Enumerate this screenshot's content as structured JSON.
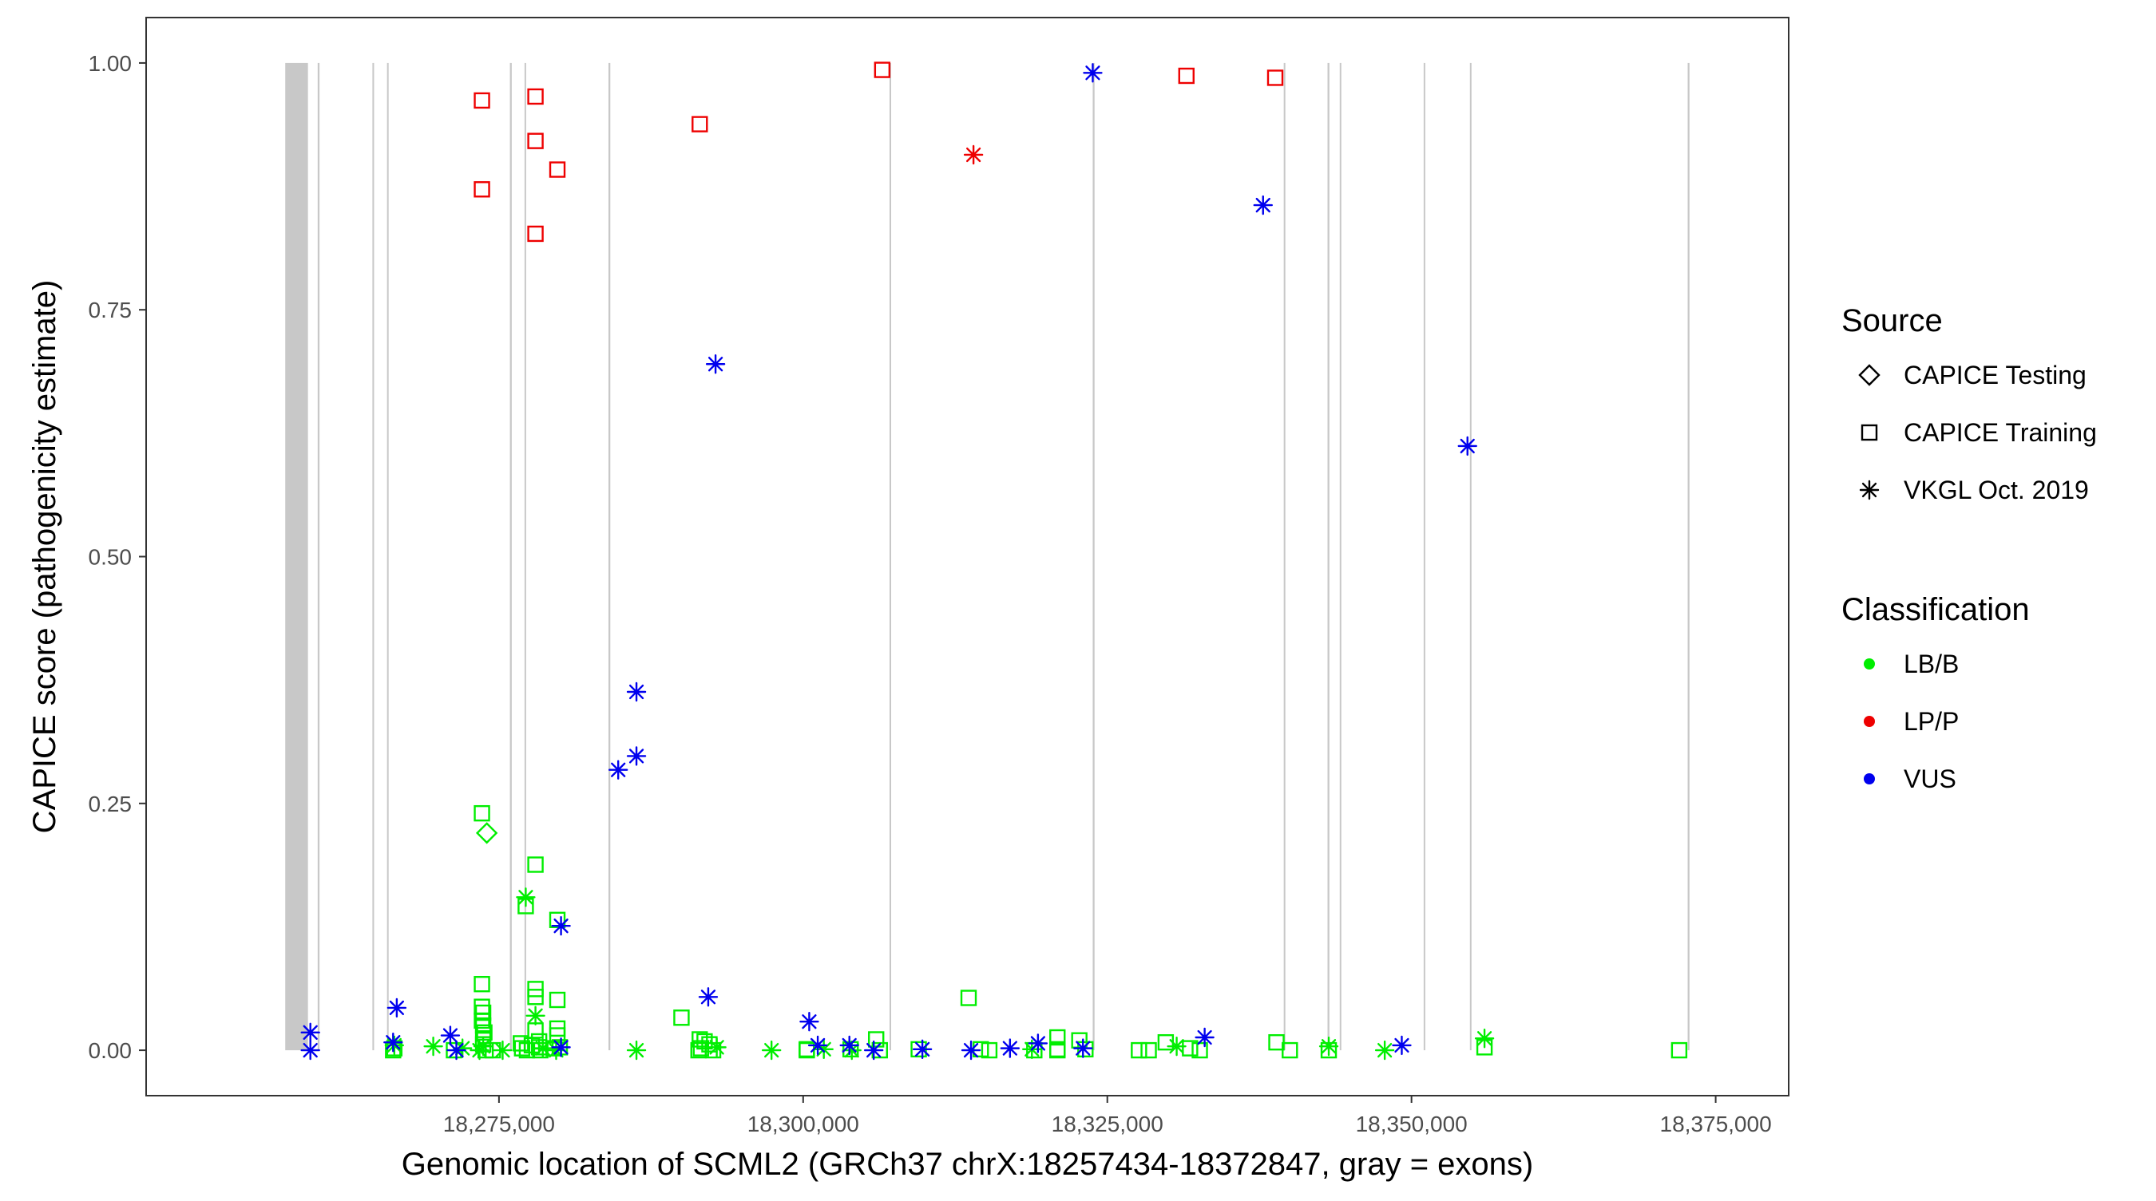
{
  "chart_data": {
    "type": "scatter",
    "xlabel": "Genomic location of SCML2 (GRCh37 chrX:18257434-18372847, gray = exons)",
    "ylabel": "CAPICE score (pathogenicity estimate)",
    "xlim": [
      18246000,
      18381000
    ],
    "ylim": [
      -0.046,
      1.046
    ],
    "x_ticks": [
      18275000,
      18300000,
      18325000,
      18350000,
      18375000
    ],
    "x_tick_labels": [
      "18,275,000",
      "18,300,000",
      "18,325,000",
      "18,350,000",
      "18,375,000"
    ],
    "y_ticks": [
      0,
      0.25,
      0.5,
      0.75,
      1
    ],
    "y_tick_labels": [
      "0.00",
      "0.25",
      "0.50",
      "0.75",
      "1.00"
    ],
    "grid": false,
    "legend_position": "right",
    "exons": [
      [
        18257434,
        18259300
      ],
      [
        18260100,
        18260250
      ],
      [
        18264600,
        18264700
      ],
      [
        18265800,
        18265900
      ],
      [
        18275900,
        18276050
      ],
      [
        18277100,
        18277200
      ],
      [
        18284000,
        18284150
      ],
      [
        18307100,
        18307200
      ],
      [
        18323800,
        18323950
      ],
      [
        18339500,
        18339600
      ],
      [
        18343100,
        18343250
      ],
      [
        18344100,
        18344200
      ],
      [
        18351000,
        18351100
      ],
      [
        18354800,
        18354900
      ],
      [
        18372700,
        18372847
      ]
    ],
    "legend": {
      "source_title": "Source",
      "sources": [
        {
          "key": "testing",
          "label": "CAPICE Testing",
          "shape": "diamond"
        },
        {
          "key": "training",
          "label": "CAPICE Training",
          "shape": "square"
        },
        {
          "key": "vkgl",
          "label": "VKGL Oct. 2019",
          "shape": "asterisk"
        }
      ],
      "class_title": "Classification",
      "classes": [
        {
          "key": "LB/B",
          "label": "LB/B",
          "color": "#00EE00"
        },
        {
          "key": "LP/P",
          "label": "LP/P",
          "color": "#EE0000"
        },
        {
          "key": "VUS",
          "label": "VUS",
          "color": "#0000EE"
        }
      ]
    },
    "points": [
      {
        "x": 18273600,
        "y": 0.962,
        "source": "training",
        "class": "LP/P"
      },
      {
        "x": 18273600,
        "y": 0.872,
        "source": "training",
        "class": "LP/P"
      },
      {
        "x": 18278000,
        "y": 0.966,
        "source": "training",
        "class": "LP/P"
      },
      {
        "x": 18278000,
        "y": 0.921,
        "source": "training",
        "class": "LP/P"
      },
      {
        "x": 18279800,
        "y": 0.892,
        "source": "training",
        "class": "LP/P"
      },
      {
        "x": 18278000,
        "y": 0.827,
        "source": "training",
        "class": "LP/P"
      },
      {
        "x": 18291500,
        "y": 0.938,
        "source": "training",
        "class": "LP/P"
      },
      {
        "x": 18306500,
        "y": 0.993,
        "source": "training",
        "class": "LP/P"
      },
      {
        "x": 18331500,
        "y": 0.987,
        "source": "training",
        "class": "LP/P"
      },
      {
        "x": 18338800,
        "y": 0.985,
        "source": "training",
        "class": "LP/P"
      },
      {
        "x": 18314000,
        "y": 0.907,
        "source": "vkgl",
        "class": "LP/P"
      },
      {
        "x": 18323800,
        "y": 0.99,
        "source": "vkgl",
        "class": "VUS"
      },
      {
        "x": 18337800,
        "y": 0.856,
        "source": "vkgl",
        "class": "VUS"
      },
      {
        "x": 18292800,
        "y": 0.695,
        "source": "vkgl",
        "class": "VUS"
      },
      {
        "x": 18354600,
        "y": 0.612,
        "source": "vkgl",
        "class": "VUS"
      },
      {
        "x": 18286300,
        "y": 0.363,
        "source": "vkgl",
        "class": "VUS"
      },
      {
        "x": 18286300,
        "y": 0.298,
        "source": "vkgl",
        "class": "VUS"
      },
      {
        "x": 18284800,
        "y": 0.284,
        "source": "vkgl",
        "class": "VUS"
      },
      {
        "x": 18280100,
        "y": 0.126,
        "source": "vkgl",
        "class": "VUS"
      },
      {
        "x": 18292200,
        "y": 0.054,
        "source": "vkgl",
        "class": "VUS"
      },
      {
        "x": 18266600,
        "y": 0.043,
        "source": "vkgl",
        "class": "VUS"
      },
      {
        "x": 18300500,
        "y": 0.029,
        "source": "vkgl",
        "class": "VUS"
      },
      {
        "x": 18259500,
        "y": 0.018,
        "source": "vkgl",
        "class": "VUS"
      },
      {
        "x": 18271000,
        "y": 0.015,
        "source": "vkgl",
        "class": "VUS"
      },
      {
        "x": 18333000,
        "y": 0.013,
        "source": "vkgl",
        "class": "VUS"
      },
      {
        "x": 18266300,
        "y": 0.008,
        "source": "vkgl",
        "class": "VUS"
      },
      {
        "x": 18319300,
        "y": 0.007,
        "source": "vkgl",
        "class": "VUS"
      },
      {
        "x": 18301200,
        "y": 0.005,
        "source": "vkgl",
        "class": "VUS"
      },
      {
        "x": 18303800,
        "y": 0.005,
        "source": "vkgl",
        "class": "VUS"
      },
      {
        "x": 18349200,
        "y": 0.005,
        "source": "vkgl",
        "class": "VUS"
      },
      {
        "x": 18280100,
        "y": 0.003,
        "source": "vkgl",
        "class": "VUS"
      },
      {
        "x": 18317000,
        "y": 0.002,
        "source": "vkgl",
        "class": "VUS"
      },
      {
        "x": 18323000,
        "y": 0.002,
        "source": "vkgl",
        "class": "VUS"
      },
      {
        "x": 18309800,
        "y": 0.001,
        "source": "vkgl",
        "class": "VUS"
      },
      {
        "x": 18259500,
        "y": 0.0,
        "source": "vkgl",
        "class": "VUS"
      },
      {
        "x": 18271500,
        "y": 0.0,
        "source": "vkgl",
        "class": "VUS"
      },
      {
        "x": 18305800,
        "y": 0.0,
        "source": "vkgl",
        "class": "VUS"
      },
      {
        "x": 18313800,
        "y": 0.0,
        "source": "vkgl",
        "class": "VUS"
      },
      {
        "x": 18273600,
        "y": 0.24,
        "source": "training",
        "class": "LB/B"
      },
      {
        "x": 18274000,
        "y": 0.22,
        "source": "testing",
        "class": "LB/B"
      },
      {
        "x": 18278000,
        "y": 0.188,
        "source": "training",
        "class": "LB/B"
      },
      {
        "x": 18277200,
        "y": 0.155,
        "source": "vkgl",
        "class": "LB/B"
      },
      {
        "x": 18277200,
        "y": 0.146,
        "source": "training",
        "class": "LB/B"
      },
      {
        "x": 18279800,
        "y": 0.132,
        "source": "training",
        "class": "LB/B"
      },
      {
        "x": 18273600,
        "y": 0.067,
        "source": "training",
        "class": "LB/B"
      },
      {
        "x": 18278000,
        "y": 0.062,
        "source": "training",
        "class": "LB/B"
      },
      {
        "x": 18278000,
        "y": 0.054,
        "source": "training",
        "class": "LB/B"
      },
      {
        "x": 18313600,
        "y": 0.053,
        "source": "training",
        "class": "LB/B"
      },
      {
        "x": 18279800,
        "y": 0.051,
        "source": "training",
        "class": "LB/B"
      },
      {
        "x": 18273600,
        "y": 0.044,
        "source": "training",
        "class": "LB/B"
      },
      {
        "x": 18273700,
        "y": 0.038,
        "source": "training",
        "class": "LB/B"
      },
      {
        "x": 18278000,
        "y": 0.035,
        "source": "vkgl",
        "class": "LB/B"
      },
      {
        "x": 18290000,
        "y": 0.033,
        "source": "training",
        "class": "LB/B"
      },
      {
        "x": 18273600,
        "y": 0.03,
        "source": "training",
        "class": "LB/B"
      },
      {
        "x": 18273700,
        "y": 0.025,
        "source": "training",
        "class": "LB/B"
      },
      {
        "x": 18279800,
        "y": 0.022,
        "source": "training",
        "class": "LB/B"
      },
      {
        "x": 18278000,
        "y": 0.02,
        "source": "training",
        "class": "LB/B"
      },
      {
        "x": 18273800,
        "y": 0.018,
        "source": "training",
        "class": "LB/B"
      },
      {
        "x": 18279800,
        "y": 0.015,
        "source": "training",
        "class": "LB/B"
      },
      {
        "x": 18320900,
        "y": 0.013,
        "source": "training",
        "class": "LB/B"
      },
      {
        "x": 18356000,
        "y": 0.012,
        "source": "vkgl",
        "class": "LB/B"
      },
      {
        "x": 18273700,
        "y": 0.012,
        "source": "training",
        "class": "LB/B"
      },
      {
        "x": 18291500,
        "y": 0.011,
        "source": "training",
        "class": "LB/B"
      },
      {
        "x": 18306000,
        "y": 0.011,
        "source": "training",
        "class": "LB/B"
      },
      {
        "x": 18322700,
        "y": 0.01,
        "source": "training",
        "class": "LB/B"
      },
      {
        "x": 18278300,
        "y": 0.009,
        "source": "training",
        "class": "LB/B"
      },
      {
        "x": 18291900,
        "y": 0.009,
        "source": "training",
        "class": "LB/B"
      },
      {
        "x": 18329800,
        "y": 0.008,
        "source": "training",
        "class": "LB/B"
      },
      {
        "x": 18338900,
        "y": 0.008,
        "source": "training",
        "class": "LB/B"
      },
      {
        "x": 18276800,
        "y": 0.007,
        "source": "training",
        "class": "LB/B"
      },
      {
        "x": 18273700,
        "y": 0.006,
        "source": "training",
        "class": "LB/B"
      },
      {
        "x": 18292300,
        "y": 0.006,
        "source": "training",
        "class": "LB/B"
      },
      {
        "x": 18277700,
        "y": 0.005,
        "source": "training",
        "class": "LB/B"
      },
      {
        "x": 18266400,
        "y": 0.005,
        "source": "vkgl",
        "class": "LB/B"
      },
      {
        "x": 18269600,
        "y": 0.004,
        "source": "vkgl",
        "class": "LB/B"
      },
      {
        "x": 18330700,
        "y": 0.004,
        "source": "vkgl",
        "class": "LB/B"
      },
      {
        "x": 18343200,
        "y": 0.004,
        "source": "vkgl",
        "class": "LB/B"
      },
      {
        "x": 18273700,
        "y": 0.004,
        "source": "vkgl",
        "class": "LB/B"
      },
      {
        "x": 18356000,
        "y": 0.003,
        "source": "training",
        "class": "LB/B"
      },
      {
        "x": 18278300,
        "y": 0.003,
        "source": "training",
        "class": "LB/B"
      },
      {
        "x": 18280000,
        "y": 0.003,
        "source": "training",
        "class": "LB/B"
      },
      {
        "x": 18292900,
        "y": 0.003,
        "source": "vkgl",
        "class": "LB/B"
      },
      {
        "x": 18331800,
        "y": 0.002,
        "source": "training",
        "class": "LB/B"
      },
      {
        "x": 18266400,
        "y": 0.002,
        "source": "training",
        "class": "LB/B"
      },
      {
        "x": 18272000,
        "y": 0.002,
        "source": "vkgl",
        "class": "LB/B"
      },
      {
        "x": 18276900,
        "y": 0.002,
        "source": "training",
        "class": "LB/B"
      },
      {
        "x": 18278600,
        "y": 0.002,
        "source": "vkgl",
        "class": "LB/B"
      },
      {
        "x": 18279500,
        "y": 0.002,
        "source": "training",
        "class": "LB/B"
      },
      {
        "x": 18291600,
        "y": 0.002,
        "source": "training",
        "class": "LB/B"
      },
      {
        "x": 18300300,
        "y": 0.001,
        "source": "training",
        "class": "LB/B"
      },
      {
        "x": 18301700,
        "y": 0.001,
        "source": "vkgl",
        "class": "LB/B"
      },
      {
        "x": 18303900,
        "y": 0.001,
        "source": "training",
        "class": "LB/B"
      },
      {
        "x": 18309500,
        "y": 0.001,
        "source": "training",
        "class": "LB/B"
      },
      {
        "x": 18314600,
        "y": 0.001,
        "source": "training",
        "class": "LB/B"
      },
      {
        "x": 18318800,
        "y": 0.001,
        "source": "vkgl",
        "class": "LB/B"
      },
      {
        "x": 18320900,
        "y": 0.001,
        "source": "training",
        "class": "LB/B"
      },
      {
        "x": 18323200,
        "y": 0.001,
        "source": "training",
        "class": "LB/B"
      },
      {
        "x": 18340000,
        "y": 0.0,
        "source": "training",
        "class": "LB/B"
      },
      {
        "x": 18343200,
        "y": 0.0,
        "source": "training",
        "class": "LB/B"
      },
      {
        "x": 18347800,
        "y": 0.0,
        "source": "vkgl",
        "class": "LB/B"
      },
      {
        "x": 18372000,
        "y": 0.0,
        "source": "training",
        "class": "LB/B"
      },
      {
        "x": 18266300,
        "y": 0.0,
        "source": "training",
        "class": "LB/B"
      },
      {
        "x": 18271300,
        "y": 0.0,
        "source": "training",
        "class": "LB/B"
      },
      {
        "x": 18273400,
        "y": 0.0,
        "source": "vkgl",
        "class": "LB/B"
      },
      {
        "x": 18273900,
        "y": 0.0,
        "source": "training",
        "class": "LB/B"
      },
      {
        "x": 18274500,
        "y": 0.0,
        "source": "training",
        "class": "LB/B"
      },
      {
        "x": 18275300,
        "y": 0.0,
        "source": "vkgl",
        "class": "LB/B"
      },
      {
        "x": 18277300,
        "y": 0.0,
        "source": "training",
        "class": "LB/B"
      },
      {
        "x": 18278400,
        "y": 0.0,
        "source": "training",
        "class": "LB/B"
      },
      {
        "x": 18279700,
        "y": 0.0,
        "source": "vkgl",
        "class": "LB/B"
      },
      {
        "x": 18286300,
        "y": 0.0,
        "source": "vkgl",
        "class": "LB/B"
      },
      {
        "x": 18291400,
        "y": 0.0,
        "source": "training",
        "class": "LB/B"
      },
      {
        "x": 18292600,
        "y": 0.0,
        "source": "training",
        "class": "LB/B"
      },
      {
        "x": 18297400,
        "y": 0.0,
        "source": "vkgl",
        "class": "LB/B"
      },
      {
        "x": 18300300,
        "y": 0.0,
        "source": "training",
        "class": "LB/B"
      },
      {
        "x": 18304000,
        "y": 0.0,
        "source": "vkgl",
        "class": "LB/B"
      },
      {
        "x": 18306300,
        "y": 0.0,
        "source": "training",
        "class": "LB/B"
      },
      {
        "x": 18315300,
        "y": 0.0,
        "source": "training",
        "class": "LB/B"
      },
      {
        "x": 18319000,
        "y": 0.0,
        "source": "training",
        "class": "LB/B"
      },
      {
        "x": 18320900,
        "y": 0.0,
        "source": "training",
        "class": "LB/B"
      },
      {
        "x": 18327600,
        "y": 0.0,
        "source": "training",
        "class": "LB/B"
      },
      {
        "x": 18328400,
        "y": 0.0,
        "source": "training",
        "class": "LB/B"
      },
      {
        "x": 18332600,
        "y": 0.0,
        "source": "training",
        "class": "LB/B"
      }
    ]
  }
}
